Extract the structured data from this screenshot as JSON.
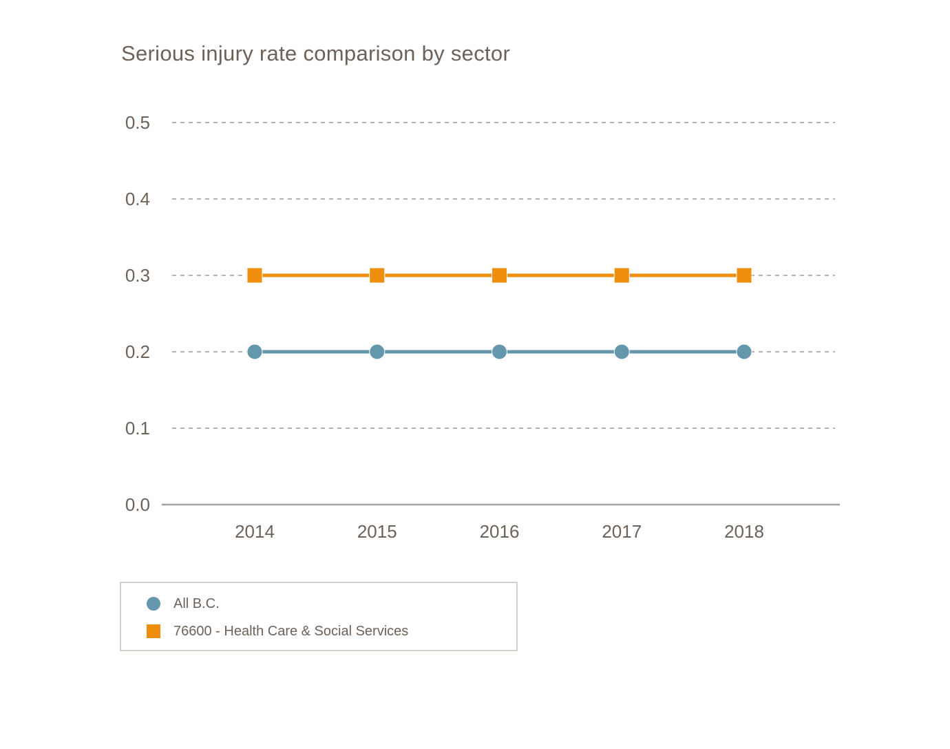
{
  "page": {
    "background": "#ffffff"
  },
  "chart_data": {
    "type": "line",
    "title": "Serious injury rate comparison by sector",
    "x": [
      "2014",
      "2015",
      "2016",
      "2017",
      "2018"
    ],
    "series": [
      {
        "name": "All B.C.",
        "marker": "circle",
        "color": "#6497ac",
        "values": [
          0.2,
          0.2,
          0.2,
          0.2,
          0.2
        ]
      },
      {
        "name": "76600 - Health Care & Social Services",
        "marker": "square",
        "color": "#ee8e0c",
        "values": [
          0.3,
          0.3,
          0.3,
          0.3,
          0.3
        ]
      }
    ],
    "yticks": [
      "0.0",
      "0.1",
      "0.2",
      "0.3",
      "0.4",
      "0.5"
    ],
    "ylim": [
      0.0,
      0.5
    ],
    "xlabel": "",
    "ylabel": "",
    "grid": "horizontal-dashed",
    "legend_position": "bottom-left"
  },
  "colors": {
    "text": "#6d6259",
    "grid_dashed": "#b8b2ac",
    "axis_line": "#a8a29c",
    "legend_border": "#d4d1cc",
    "series_all_bc": "#6497ac",
    "series_health_care": "#ee8e0c"
  }
}
